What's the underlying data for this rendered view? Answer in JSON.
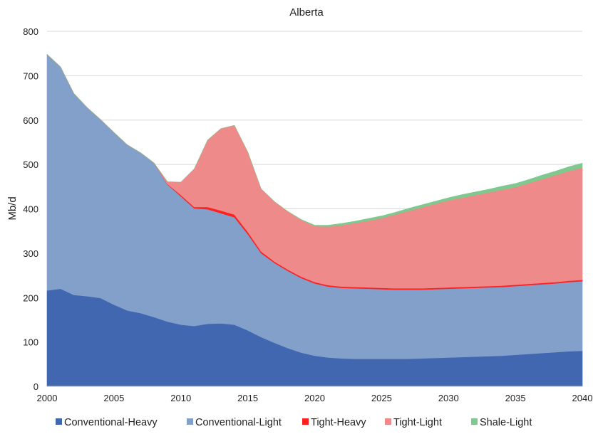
{
  "chart_data": {
    "type": "area",
    "stacked": true,
    "title": "Alberta",
    "xlabel": "",
    "ylabel": "Mb/d",
    "xlim": [
      2000,
      2040
    ],
    "ylim": [
      0,
      800
    ],
    "xticks": [
      2000,
      2005,
      2010,
      2015,
      2020,
      2025,
      2030,
      2035,
      2040
    ],
    "yticks": [
      0,
      100,
      200,
      300,
      400,
      500,
      600,
      700,
      800
    ],
    "grid": "horizontal",
    "legend": "bottom",
    "x": [
      2000,
      2001,
      2002,
      2003,
      2004,
      2005,
      2006,
      2007,
      2008,
      2009,
      2010,
      2011,
      2012,
      2013,
      2014,
      2015,
      2016,
      2017,
      2018,
      2019,
      2020,
      2021,
      2022,
      2023,
      2024,
      2025,
      2026,
      2027,
      2028,
      2029,
      2030,
      2031,
      2032,
      2033,
      2034,
      2035,
      2036,
      2037,
      2038,
      2039,
      2040
    ],
    "series": [
      {
        "name": "Conventional-Heavy",
        "color": "#4067B0",
        "values": [
          216,
          220,
          206,
          203,
          199,
          184,
          171,
          165,
          156,
          146,
          139,
          136,
          141,
          142,
          139,
          126,
          111,
          98,
          86,
          76,
          69,
          65,
          63,
          62,
          62,
          62,
          62,
          62,
          63,
          64,
          65,
          66,
          67,
          68,
          69,
          71,
          73,
          75,
          77,
          79,
          80
        ]
      },
      {
        "name": "Conventional-Light",
        "color": "#82A0CA",
        "values": [
          532,
          500,
          454,
          425,
          402,
          388,
          373,
          361,
          347,
          309,
          289,
          265,
          258,
          248,
          242,
          217,
          189,
          180,
          174,
          168,
          163,
          160,
          159,
          159,
          158,
          157,
          156,
          156,
          155,
          155,
          155,
          155,
          155,
          155,
          155,
          155,
          155,
          155,
          155,
          156,
          157
        ]
      },
      {
        "name": "Tight-Heavy",
        "color": "#FF2020",
        "values": [
          0,
          0,
          0,
          0,
          0,
          0,
          0,
          0,
          0,
          1,
          3,
          3,
          5,
          6,
          6,
          5,
          4,
          3,
          3,
          3,
          3,
          3,
          3,
          3,
          3,
          3,
          3,
          3,
          3,
          3,
          3,
          3,
          3,
          3,
          3,
          3,
          3,
          3,
          3,
          3,
          3
        ]
      },
      {
        "name": "Tight-Light",
        "color": "#EE8A8A",
        "values": [
          0,
          0,
          0,
          0,
          0,
          0,
          0,
          0,
          0,
          5,
          29,
          86,
          151,
          185,
          201,
          180,
          141,
          135,
          131,
          128,
          126,
          132,
          138,
          144,
          150,
          157,
          166,
          174,
          182,
          189,
          196,
          201,
          206,
          211,
          216,
          220,
          227,
          234,
          241,
          247,
          253
        ]
      },
      {
        "name": "Shale-Light",
        "color": "#7FC98F",
        "values": [
          0,
          0,
          0,
          0,
          0,
          0,
          0,
          0,
          0,
          0,
          0,
          0,
          0,
          0,
          0,
          0,
          0,
          0,
          0,
          1,
          2,
          3,
          4,
          4,
          5,
          5,
          5,
          6,
          6,
          6,
          6,
          7,
          7,
          7,
          8,
          8,
          8,
          9,
          9,
          10,
          10
        ]
      }
    ]
  }
}
